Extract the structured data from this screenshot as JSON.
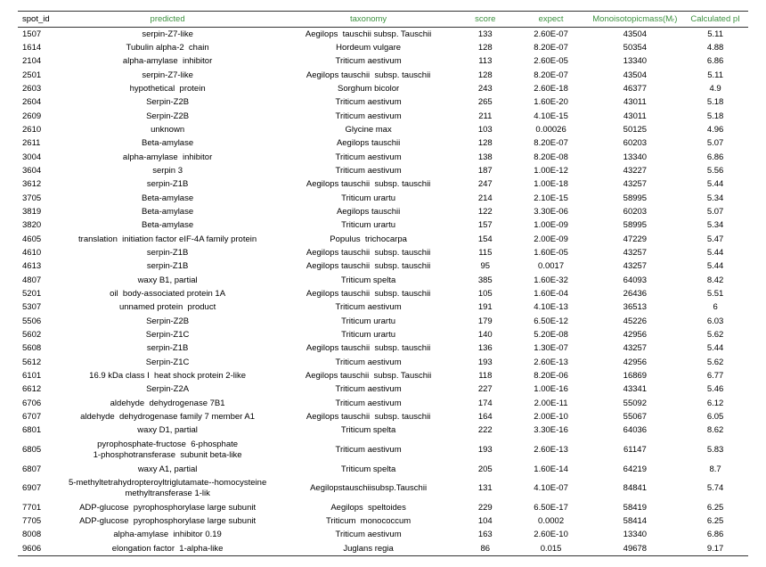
{
  "headers": {
    "spot_id": "spot_id",
    "predicted": "predicted",
    "taxonomy": "taxonomy",
    "score": "score",
    "expect": "expect",
    "mass": "Monoisotopicmass(Mᵣ)",
    "pi": "Calculated pI"
  },
  "rows": [
    {
      "spot": "1507",
      "predicted": "serpin-Z7-like",
      "taxonomy": "Aegilops  tauschii subsp. Tauschii",
      "score": "133",
      "expect": "2.60E-07",
      "mass": "43504",
      "pi": "5.11"
    },
    {
      "spot": "1614",
      "predicted": "Tubulin alpha-2  chain",
      "taxonomy": "Hordeum vulgare",
      "score": "128",
      "expect": "8.20E-07",
      "mass": "50354",
      "pi": "4.88"
    },
    {
      "spot": "2104",
      "predicted": "alpha-amylase  inhibitor",
      "taxonomy": "Triticum aestivum",
      "score": "113",
      "expect": "2.60E-05",
      "mass": "13340",
      "pi": "6.86"
    },
    {
      "spot": "2501",
      "predicted": "serpin-Z7-like",
      "taxonomy": "Aegilops tauschii  subsp. tauschii",
      "score": "128",
      "expect": "8.20E-07",
      "mass": "43504",
      "pi": "5.11"
    },
    {
      "spot": "2603",
      "predicted": "hypothetical  protein",
      "taxonomy": "Sorghum bicolor",
      "score": "243",
      "expect": "2.60E-18",
      "mass": "46377",
      "pi": "4.9"
    },
    {
      "spot": "2604",
      "predicted": "Serpin-Z2B",
      "taxonomy": "Triticum aestivum",
      "score": "265",
      "expect": "1.60E-20",
      "mass": "43011",
      "pi": "5.18"
    },
    {
      "spot": "2609",
      "predicted": "Serpin-Z2B",
      "taxonomy": "Triticum aestivum",
      "score": "211",
      "expect": "4.10E-15",
      "mass": "43011",
      "pi": "5.18"
    },
    {
      "spot": "2610",
      "predicted": "unknown",
      "taxonomy": "Glycine max",
      "score": "103",
      "expect": "0.00026",
      "mass": "50125",
      "pi": "4.96"
    },
    {
      "spot": "2611",
      "predicted": "Beta-amylase",
      "taxonomy": "Aegilops tauschii",
      "score": "128",
      "expect": "8.20E-07",
      "mass": "60203",
      "pi": "5.07"
    },
    {
      "spot": "3004",
      "predicted": "alpha-amylase  inhibitor",
      "taxonomy": "Triticum aestivum",
      "score": "138",
      "expect": "8.20E-08",
      "mass": "13340",
      "pi": "6.86"
    },
    {
      "spot": "3604",
      "predicted": "serpin 3",
      "taxonomy": "Triticum aestivum",
      "score": "187",
      "expect": "1.00E-12",
      "mass": "43227",
      "pi": "5.56"
    },
    {
      "spot": "3612",
      "predicted": "serpin-Z1B",
      "taxonomy": "Aegilops tauschii  subsp. tauschii",
      "score": "247",
      "expect": "1.00E-18",
      "mass": "43257",
      "pi": "5.44"
    },
    {
      "spot": "3705",
      "predicted": "Beta-amylase",
      "taxonomy": "Triticum urartu",
      "score": "214",
      "expect": "2.10E-15",
      "mass": "58995",
      "pi": "5.34"
    },
    {
      "spot": "3819",
      "predicted": "Beta-amylase",
      "taxonomy": "Aegilops tauschii",
      "score": "122",
      "expect": "3.30E-06",
      "mass": "60203",
      "pi": "5.07"
    },
    {
      "spot": "3820",
      "predicted": "Beta-amylase",
      "taxonomy": "Triticum urartu",
      "score": "157",
      "expect": "1.00E-09",
      "mass": "58995",
      "pi": "5.34"
    },
    {
      "spot": "4605",
      "predicted": "translation  initiation factor eIF-4A family protein",
      "taxonomy": "Populus  trichocarpa",
      "score": "154",
      "expect": "2.00E-09",
      "mass": "47229",
      "pi": "5.47"
    },
    {
      "spot": "4610",
      "predicted": "serpin-Z1B",
      "taxonomy": "Aegilops tauschii  subsp. tauschii",
      "score": "115",
      "expect": "1.60E-05",
      "mass": "43257",
      "pi": "5.44"
    },
    {
      "spot": "4613",
      "predicted": "serpin-Z1B",
      "taxonomy": "Aegilops tauschii  subsp. tauschii",
      "score": "95",
      "expect": "0.0017",
      "mass": "43257",
      "pi": "5.44"
    },
    {
      "spot": "4807",
      "predicted": "waxy B1, partial",
      "taxonomy": "Triticum spelta",
      "score": "385",
      "expect": "1.60E-32",
      "mass": "64093",
      "pi": "8.42"
    },
    {
      "spot": "5201",
      "predicted": "oil  body-associated protein 1A",
      "taxonomy": "Aegilops tauschii  subsp. tauschii",
      "score": "105",
      "expect": "1.60E-04",
      "mass": "26436",
      "pi": "5.51"
    },
    {
      "spot": "5307",
      "predicted": "unnamed protein  product",
      "taxonomy": "Triticum aestivum",
      "score": "191",
      "expect": "4.10E-13",
      "mass": "36513",
      "pi": "6"
    },
    {
      "spot": "5506",
      "predicted": "Serpin-Z2B",
      "taxonomy": "Triticum urartu",
      "score": "179",
      "expect": "6.50E-12",
      "mass": "45226",
      "pi": "6.03"
    },
    {
      "spot": "5602",
      "predicted": "Serpin-Z1C",
      "taxonomy": "Triticum urartu",
      "score": "140",
      "expect": "5.20E-08",
      "mass": "42956",
      "pi": "5.62"
    },
    {
      "spot": "5608",
      "predicted": "serpin-Z1B",
      "taxonomy": "Aegilops tauschii  subsp. tauschii",
      "score": "136",
      "expect": "1.30E-07",
      "mass": "43257",
      "pi": "5.44"
    },
    {
      "spot": "5612",
      "predicted": "Serpin-Z1C",
      "taxonomy": "Triticum aestivum",
      "score": "193",
      "expect": "2.60E-13",
      "mass": "42956",
      "pi": "5.62"
    },
    {
      "spot": "6101",
      "predicted": "16.9 kDa class I  heat shock protein 2-like",
      "taxonomy": "Aegilops tauschii  subsp. Tauschii",
      "score": "118",
      "expect": "8.20E-06",
      "mass": "16869",
      "pi": "6.77"
    },
    {
      "spot": "6612",
      "predicted": "Serpin-Z2A",
      "taxonomy": "Triticum aestivum",
      "score": "227",
      "expect": "1.00E-16",
      "mass": "43341",
      "pi": "5.46"
    },
    {
      "spot": "6706",
      "predicted": "aldehyde  dehydrogenase 7B1",
      "taxonomy": "Triticum aestivum",
      "score": "174",
      "expect": "2.00E-11",
      "mass": "55092",
      "pi": "6.12"
    },
    {
      "spot": "6707",
      "predicted": "aldehyde  dehydrogenase family 7 member A1",
      "taxonomy": "Aegilops tauschii  subsp. tauschii",
      "score": "164",
      "expect": "2.00E-10",
      "mass": "55067",
      "pi": "6.05"
    },
    {
      "spot": "6801",
      "predicted": "waxy D1, partial",
      "taxonomy": "Triticum spelta",
      "score": "222",
      "expect": "3.30E-16",
      "mass": "64036",
      "pi": "8.62"
    },
    {
      "spot": "6805",
      "predicted": "pyrophosphate-fructose  6-phosphate\n1-phosphotransferase  subunit beta-like",
      "taxonomy": "Triticum aestivum",
      "score": "193",
      "expect": "2.60E-13",
      "mass": "61147",
      "pi": "5.83"
    },
    {
      "spot": "6807",
      "predicted": "waxy A1, partial",
      "taxonomy": "Triticum spelta",
      "score": "205",
      "expect": "1.60E-14",
      "mass": "64219",
      "pi": "8.7"
    },
    {
      "spot": "6907",
      "predicted": "5-methyltetrahydropteroyltriglutamate--homocysteine\nmethyltransferase 1-lik",
      "taxonomy": "Aegilopstauschiisubsp.Tauschii",
      "score": "131",
      "expect": "4.10E-07",
      "mass": "84841",
      "pi": "5.74"
    },
    {
      "spot": "7701",
      "predicted": "ADP-glucose  pyrophosphorylase large subunit",
      "taxonomy": "Aegilops  speltoides",
      "score": "229",
      "expect": "6.50E-17",
      "mass": "58419",
      "pi": "6.25"
    },
    {
      "spot": "7705",
      "predicted": "ADP-glucose  pyrophosphorylase large subunit",
      "taxonomy": "Triticum  monococcum",
      "score": "104",
      "expect": "0.0002",
      "mass": "58414",
      "pi": "6.25"
    },
    {
      "spot": "8008",
      "predicted": "alpha-amylase  inhibitor 0.19",
      "taxonomy": "Triticum aestivum",
      "score": "163",
      "expect": "2.60E-10",
      "mass": "13340",
      "pi": "6.86"
    },
    {
      "spot": "9606",
      "predicted": "elongation factor  1-alpha-like",
      "taxonomy": "Juglans regia",
      "score": "86",
      "expect": "0.015",
      "mass": "49678",
      "pi": "9.17"
    }
  ]
}
